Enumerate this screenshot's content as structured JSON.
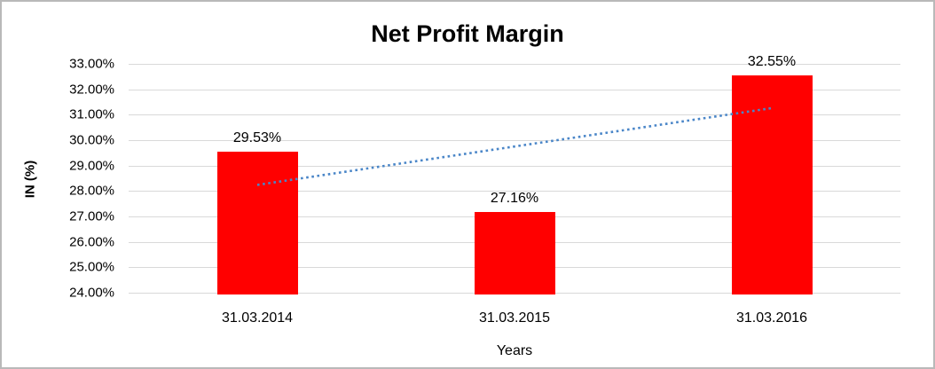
{
  "window": {
    "background": "#ffffff",
    "border_color": "#b9b9b9"
  },
  "chart_data": {
    "type": "bar",
    "title": "Net Profit Margin",
    "xlabel": "Years",
    "ylabel": "IN (%)",
    "categories": [
      "31.03.2014",
      "31.03.2015",
      "31.03.2016"
    ],
    "values": [
      29.53,
      27.16,
      32.55
    ],
    "value_labels": [
      "29.53%",
      "27.16%",
      "32.55%"
    ],
    "ylim": [
      24,
      33
    ],
    "ytick_labels": [
      "33.00%",
      "32.00%",
      "31.00%",
      "30.00%",
      "29.00%",
      "28.00%",
      "27.00%",
      "26.00%",
      "25.00%",
      "24.00%"
    ],
    "grid": true,
    "gridline_color": "#d9d9d9",
    "bar_color": "#ff0000",
    "legend": "none",
    "trendline": {
      "type": "linear",
      "style": "dotted",
      "color": "#4a86c8",
      "start_value": 28.24,
      "end_value": 31.26
    }
  }
}
